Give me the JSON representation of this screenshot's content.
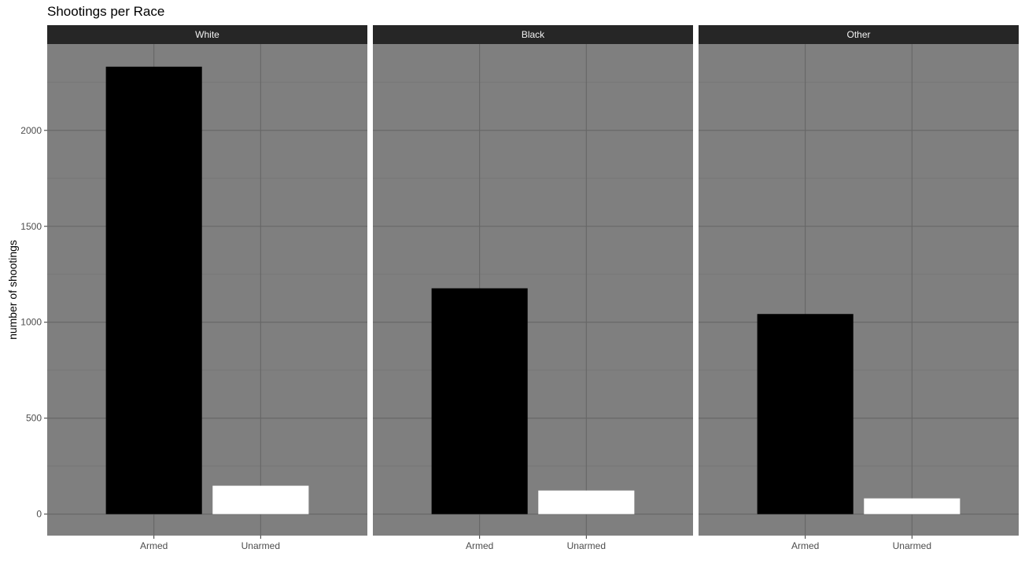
{
  "chart_data": {
    "type": "bar",
    "title": "Shootings per Race",
    "xlabel": "",
    "ylabel": "number of shootings",
    "categories": [
      "Armed",
      "Unarmed"
    ],
    "facets": [
      {
        "name": "White",
        "values": [
          2332,
          148
        ]
      },
      {
        "name": "Black",
        "values": [
          1177,
          123
        ]
      },
      {
        "name": "Other",
        "values": [
          1043,
          82
        ]
      }
    ],
    "bar_colors": [
      "#000000",
      "#ffffff"
    ],
    "y_ticks": [
      0,
      500,
      1000,
      1500,
      2000
    ],
    "ylim": [
      -112,
      2450
    ],
    "grid": true,
    "legend": "none",
    "colors": {
      "panel_background": "#7f7f7f",
      "strip_background": "#262626",
      "strip_text": "#f2f2f2",
      "grid_major": "#666666",
      "grid_minor": "#717171"
    }
  }
}
